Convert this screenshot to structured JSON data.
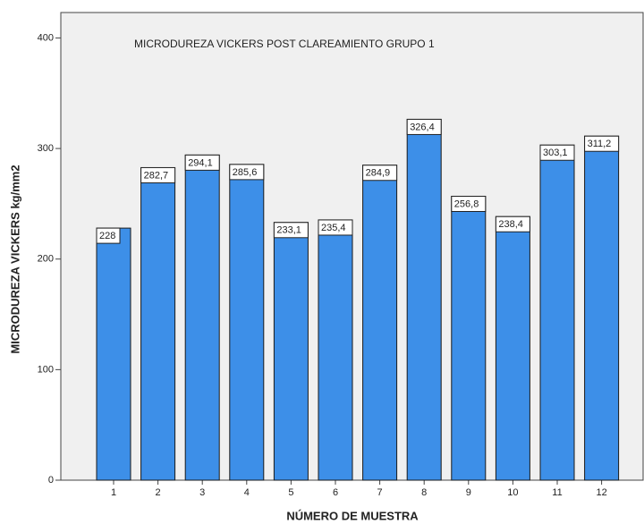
{
  "chart_data": {
    "type": "bar",
    "title": "MICRODUREZA VICKERS POST CLAREAMIENTO GRUPO 1",
    "x_label": "NÚMERO DE MUESTRA",
    "y_label": "MICRODUREZA VICKERS kg/mm2",
    "categories": [
      "1",
      "2",
      "3",
      "4",
      "5",
      "6",
      "7",
      "8",
      "9",
      "10",
      "11",
      "12"
    ],
    "values": [
      228,
      282.7,
      294.1,
      285.6,
      233.1,
      235.4,
      284.9,
      326.4,
      256.8,
      238.4,
      303.1,
      311.2
    ],
    "value_labels": [
      "228",
      "282,7",
      "294,1",
      "285,6",
      "233,1",
      "235,4",
      "284,9",
      "326,4",
      "256,8",
      "238,4",
      "303,1",
      "311,2"
    ],
    "color": "#3d8fe8",
    "ylim": [
      0,
      423
    ],
    "yticks": [
      0,
      100,
      200,
      300,
      400
    ]
  }
}
